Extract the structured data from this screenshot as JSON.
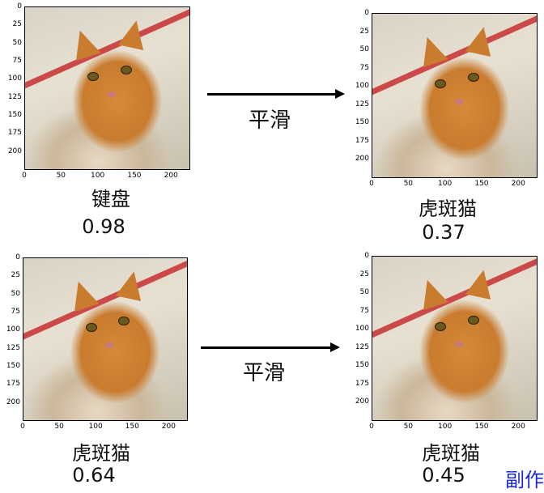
{
  "panels": [
    {
      "label": "键盘",
      "score": "0.98"
    },
    {
      "label": "虎斑猫",
      "score": "0.37"
    },
    {
      "label": "虎斑猫",
      "score": "0.64"
    },
    {
      "label": "虎斑猫",
      "score": "0.45"
    }
  ],
  "arrows": [
    {
      "label": "平滑"
    },
    {
      "label": "平滑"
    }
  ],
  "yticks": [
    "0",
    "25",
    "50",
    "75",
    "100",
    "125",
    "150",
    "175",
    "200"
  ],
  "xticks": [
    "0",
    "50",
    "100",
    "150",
    "200"
  ],
  "watermark": "副作",
  "colors": {
    "arrow": "#000000",
    "watermark": "#1a2bd8"
  }
}
